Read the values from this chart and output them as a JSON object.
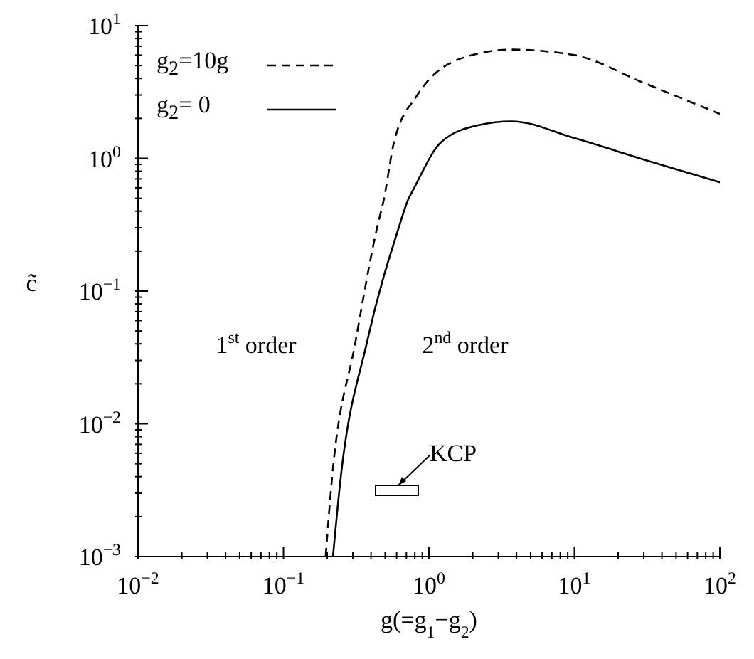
{
  "chart_data": {
    "type": "line",
    "xlabel": "g(=g$_{1}$−g$_{2}$)",
    "ylabel": "c̃",
    "log": "xy",
    "legend": "top left",
    "marker": "none",
    "xlim": [
      0.01,
      100
    ],
    "ylim": [
      0.001,
      10
    ],
    "xticks": [
      {
        "value": 0.01,
        "label": "10$^{−2}$"
      },
      {
        "value": 0.02,
        "label": null
      },
      {
        "value": 0.03,
        "label": null
      },
      {
        "value": 0.04,
        "label": null
      },
      {
        "value": 0.05,
        "label": null
      },
      {
        "value": 0.06,
        "label": null
      },
      {
        "value": 0.07,
        "label": null
      },
      {
        "value": 0.08,
        "label": null
      },
      {
        "value": 0.09,
        "label": null
      },
      {
        "value": 0.1,
        "label": "10$^{−1}$"
      },
      {
        "value": 0.2,
        "label": null
      },
      {
        "value": 0.3,
        "label": null
      },
      {
        "value": 0.4,
        "label": null
      },
      {
        "value": 0.5,
        "label": null
      },
      {
        "value": 0.6,
        "label": null
      },
      {
        "value": 0.7,
        "label": null
      },
      {
        "value": 0.8,
        "label": null
      },
      {
        "value": 0.9,
        "label": null
      },
      {
        "value": 1,
        "label": "10$^{0}$"
      },
      {
        "value": 2,
        "label": null
      },
      {
        "value": 3,
        "label": null
      },
      {
        "value": 4,
        "label": null
      },
      {
        "value": 5,
        "label": null
      },
      {
        "value": 6,
        "label": null
      },
      {
        "value": 7,
        "label": null
      },
      {
        "value": 8,
        "label": null
      },
      {
        "value": 9,
        "label": null
      },
      {
        "value": 10,
        "label": "10$^{1}$"
      },
      {
        "value": 20,
        "label": null
      },
      {
        "value": 30,
        "label": null
      },
      {
        "value": 40,
        "label": null
      },
      {
        "value": 50,
        "label": null
      },
      {
        "value": 60,
        "label": null
      },
      {
        "value": 70,
        "label": null
      },
      {
        "value": 80,
        "label": null
      },
      {
        "value": 90,
        "label": null
      },
      {
        "value": 100,
        "label": "10$^{2}$"
      }
    ],
    "yticks": [
      {
        "value": 0.001,
        "label": "10$^{−3}$"
      },
      {
        "value": 0.002,
        "label": null
      },
      {
        "value": 0.003,
        "label": null
      },
      {
        "value": 0.004,
        "label": null
      },
      {
        "value": 0.005,
        "label": null
      },
      {
        "value": 0.006,
        "label": null
      },
      {
        "value": 0.007,
        "label": null
      },
      {
        "value": 0.008,
        "label": null
      },
      {
        "value": 0.009,
        "label": null
      },
      {
        "value": 0.01,
        "label": "10$^{−2}$"
      },
      {
        "value": 0.02,
        "label": null
      },
      {
        "value": 0.03,
        "label": null
      },
      {
        "value": 0.04,
        "label": null
      },
      {
        "value": 0.05,
        "label": null
      },
      {
        "value": 0.06,
        "label": null
      },
      {
        "value": 0.07,
        "label": null
      },
      {
        "value": 0.08,
        "label": null
      },
      {
        "value": 0.09,
        "label": null
      },
      {
        "value": 0.1,
        "label": "10$^{−1}$"
      },
      {
        "value": 0.2,
        "label": null
      },
      {
        "value": 0.3,
        "label": null
      },
      {
        "value": 0.4,
        "label": null
      },
      {
        "value": 0.5,
        "label": null
      },
      {
        "value": 0.6,
        "label": null
      },
      {
        "value": 0.7,
        "label": null
      },
      {
        "value": 0.8,
        "label": null
      },
      {
        "value": 0.9,
        "label": null
      },
      {
        "value": 1,
        "label": "10$^{0}$"
      },
      {
        "value": 2,
        "label": null
      },
      {
        "value": 3,
        "label": null
      },
      {
        "value": 4,
        "label": null
      },
      {
        "value": 5,
        "label": null
      },
      {
        "value": 6,
        "label": null
      },
      {
        "value": 7,
        "label": null
      },
      {
        "value": 8,
        "label": null
      },
      {
        "value": 9,
        "label": null
      },
      {
        "value": 10,
        "label": "10$^{1}$"
      }
    ],
    "series": [
      {
        "name": "g$_{2}$=10g",
        "color": "#000000",
        "line_style": "dashed",
        "x": [
          0.195,
          0.214,
          0.313,
          0.44,
          0.49,
          0.575,
          0.83,
          1.78,
          3.7,
          10,
          30,
          100
        ],
        "values": [
          0.001,
          0.00355,
          0.0417,
          0.3,
          0.49,
          1.32,
          2.98,
          5.8,
          6.6,
          6.0,
          3.7,
          2.16
        ]
      },
      {
        "name": "g$_{2}$= 0",
        "color": "#000000",
        "line_style": "solid",
        "x": [
          0.219,
          0.245,
          0.376,
          0.62,
          0.72,
          0.78,
          1.21,
          2.2,
          3.7,
          10,
          30,
          100
        ],
        "values": [
          0.001,
          0.00355,
          0.0417,
          0.3,
          0.49,
          0.58,
          1.32,
          1.78,
          1.9,
          1.42,
          0.98,
          0.66
        ]
      }
    ],
    "annotations": [
      "1$^{st}$ order",
      "2$^{nd}$ order",
      "KCP"
    ]
  }
}
